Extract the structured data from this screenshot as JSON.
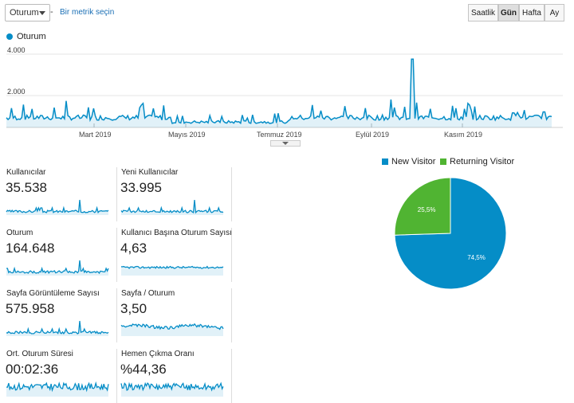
{
  "toolbar": {
    "metric_select": "Oturum",
    "separator": "-",
    "add_metric_link": "Bir metrik seçin",
    "granularity": [
      {
        "label": "Saatlik",
        "active": false
      },
      {
        "label": "Gün",
        "active": true
      },
      {
        "label": "Hafta",
        "active": false
      },
      {
        "label": "Ay",
        "active": false
      }
    ]
  },
  "main_chart": {
    "legend": "Oturum",
    "y_ticks": [
      "4.000",
      "2.000"
    ],
    "x_ticks": [
      "Mart 2019",
      "Mayıs 2019",
      "Temmuz 2019",
      "Eylül 2019",
      "Kasım 2019"
    ],
    "color": "#058dc7"
  },
  "cards": [
    {
      "label": "Kullanıcılar",
      "value": "35.538"
    },
    {
      "label": "Yeni Kullanıcılar",
      "value": "33.995"
    },
    {
      "label": "Oturum",
      "value": "164.648"
    },
    {
      "label": "Kullanıcı Başına Oturum Sayısı",
      "value": "4,63"
    },
    {
      "label": "Sayfa Görüntüleme Sayısı",
      "value": "575.958"
    },
    {
      "label": "Sayfa / Oturum",
      "value": "3,50"
    },
    {
      "label": "Ort. Oturum Süresi",
      "value": "00:02:36"
    },
    {
      "label": "Hemen Çıkma Oranı",
      "value": "%44,36"
    }
  ],
  "pie": {
    "legend": [
      {
        "name": "New Visitor",
        "color": "#058dc7"
      },
      {
        "name": "Returning Visitor",
        "color": "#50b432"
      }
    ],
    "slices": [
      {
        "name": "New Visitor",
        "value": 74.5,
        "label": "74,5%"
      },
      {
        "name": "Returning Visitor",
        "value": 25.5,
        "label": "25,5%"
      }
    ]
  }
}
